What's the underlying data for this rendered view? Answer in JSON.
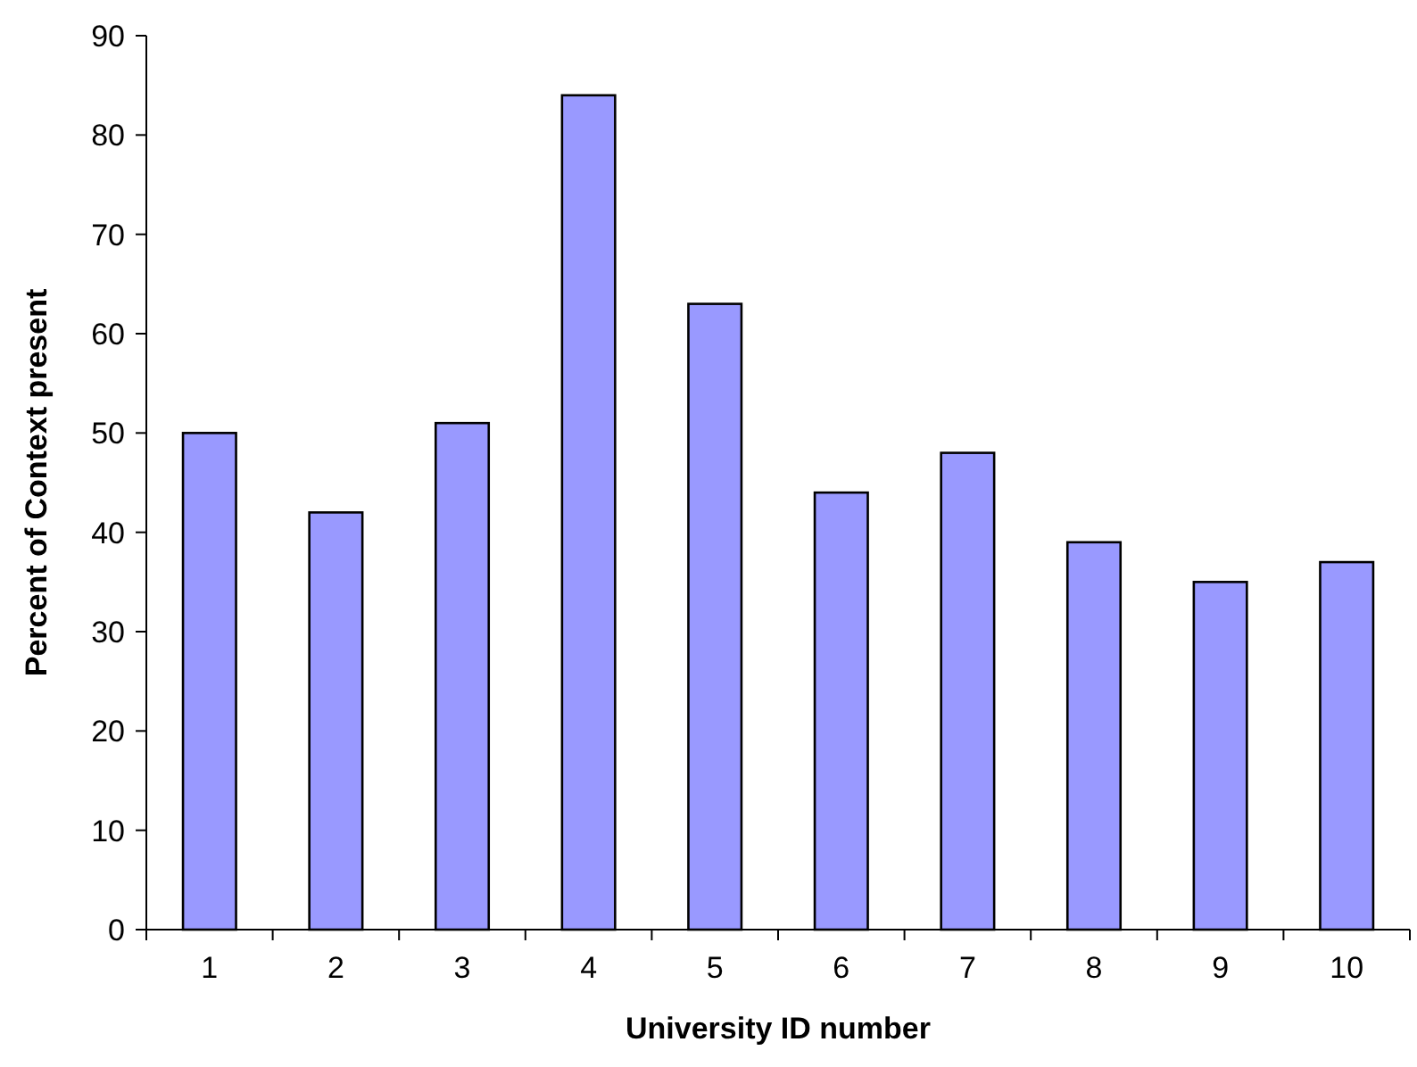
{
  "chart_data": {
    "type": "bar",
    "xlabel": "University ID number",
    "ylabel": "Percent of Context present",
    "categories": [
      "1",
      "2",
      "3",
      "4",
      "5",
      "6",
      "7",
      "8",
      "9",
      "10"
    ],
    "values": [
      50,
      42,
      51,
      84,
      63,
      44,
      48,
      39,
      35,
      37
    ],
    "color": "#9999ff",
    "ylim": [
      0,
      90
    ],
    "yticks": [
      0,
      10,
      20,
      30,
      40,
      50,
      60,
      70,
      80,
      90
    ],
    "grid": false
  }
}
